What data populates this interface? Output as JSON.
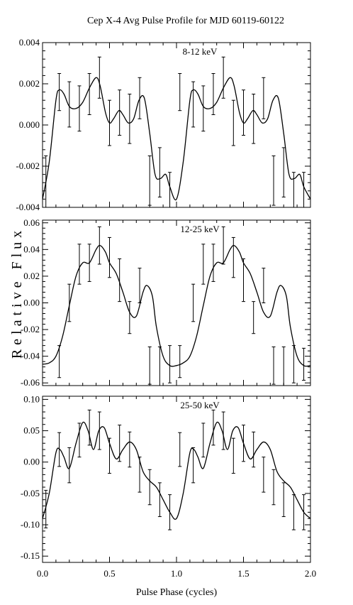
{
  "title": "Cep X-4    Avg Pulse Profile for MJD 60119-60122",
  "ylabel": "Relative Flux",
  "xlabel": "Pulse Phase (cycles)",
  "chart_data": [
    {
      "type": "line",
      "label": "8-12 keV",
      "xlim": [
        0.0,
        2.0
      ],
      "ylim": [
        -0.004,
        0.004
      ],
      "yticks": [
        -0.004,
        -0.002,
        0.0,
        0.002,
        0.004
      ],
      "ytick_labels": [
        "-0.004",
        "-0.002",
        "0.000",
        "0.002",
        "0.004"
      ],
      "error_bar_x": [
        0.025,
        0.125,
        0.2,
        0.275,
        0.35,
        0.425,
        0.5,
        0.575,
        0.65,
        0.725,
        0.8,
        0.875,
        0.95,
        1.025,
        1.125,
        1.2,
        1.275,
        1.35,
        1.425,
        1.5,
        1.575,
        1.65,
        1.725,
        1.8,
        1.875,
        1.95
      ],
      "error_bar_y": [
        -0.0033,
        0.0016,
        0.001,
        0.0008,
        0.0015,
        0.0023,
        0.0001,
        0.0006,
        0.0003,
        0.0013,
        -0.0027,
        -0.0023,
        -0.0034,
        0.0016,
        0.001,
        0.0008,
        0.0015,
        0.0023,
        0.0001,
        0.0006,
        0.0003,
        0.0013,
        -0.0027,
        -0.0023,
        -0.0034,
        -0.0034
      ],
      "error_bar_err": [
        0.0018,
        0.0009,
        0.0011,
        0.0011,
        0.001,
        0.001,
        0.0011,
        0.0011,
        0.0012,
        0.001,
        0.0012,
        0.0012,
        0.0011,
        0.0009,
        0.0011,
        0.0011,
        0.001,
        0.001,
        0.0011,
        0.0011,
        0.0012,
        0.001,
        0.0012,
        0.0012,
        0.0011,
        0.0011
      ],
      "curve_x": [
        0.0,
        0.05,
        0.1,
        0.125,
        0.16,
        0.2,
        0.25,
        0.3,
        0.35,
        0.4,
        0.43,
        0.47,
        0.5,
        0.53,
        0.57,
        0.6,
        0.64,
        0.68,
        0.72,
        0.76,
        0.8,
        0.84,
        0.88,
        0.92,
        0.95,
        1.0,
        1.05,
        1.1,
        1.125,
        1.16,
        1.2,
        1.25,
        1.3,
        1.35,
        1.4,
        1.43,
        1.47,
        1.5,
        1.53,
        1.57,
        1.6,
        1.64,
        1.68,
        1.72,
        1.76,
        1.8,
        1.84,
        1.88,
        1.92,
        1.95,
        2.0
      ],
      "curve_y": [
        -0.0036,
        -0.0018,
        0.0012,
        0.0017,
        0.0015,
        0.0009,
        0.0008,
        0.0011,
        0.0018,
        0.0023,
        0.0019,
        0.0006,
        0.0001,
        0.0003,
        0.0007,
        0.0005,
        0.0001,
        0.0003,
        0.0012,
        0.0013,
        -0.0004,
        -0.0024,
        -0.0026,
        -0.0024,
        -0.003,
        -0.0036,
        -0.0018,
        0.0012,
        0.0017,
        0.0015,
        0.0009,
        0.0008,
        0.0011,
        0.0018,
        0.0023,
        0.0019,
        0.0006,
        0.0001,
        0.0003,
        0.0007,
        0.0005,
        0.0001,
        0.0003,
        0.0012,
        0.0013,
        -0.0004,
        -0.0024,
        -0.0026,
        -0.0024,
        -0.003,
        -0.0036
      ]
    },
    {
      "type": "line",
      "label": "12-25 keV",
      "xlim": [
        0.0,
        2.0
      ],
      "ylim": [
        -0.062,
        0.062
      ],
      "yticks": [
        -0.06,
        -0.04,
        -0.02,
        0.0,
        0.02,
        0.04,
        0.06
      ],
      "ytick_labels": [
        "-0.06",
        "-0.04",
        "-0.02",
        "0.00",
        "0.02",
        "0.04",
        "0.06"
      ],
      "error_bar_x": [
        0.125,
        0.2,
        0.275,
        0.35,
        0.425,
        0.5,
        0.575,
        0.65,
        0.725,
        0.8,
        0.875,
        0.95,
        1.025,
        1.125,
        1.2,
        1.275,
        1.35,
        1.425,
        1.5,
        1.575,
        1.65,
        1.725,
        1.8,
        1.875,
        1.95
      ],
      "error_bar_y": [
        -0.044,
        0.0,
        0.029,
        0.03,
        0.043,
        0.034,
        0.017,
        -0.011,
        0.013,
        -0.047,
        -0.048,
        -0.046,
        -0.044,
        0.0,
        0.029,
        0.03,
        0.043,
        0.034,
        0.017,
        -0.011,
        0.013,
        -0.047,
        -0.048,
        -0.046,
        -0.046
      ],
      "error_bar_err": [
        0.012,
        0.014,
        0.015,
        0.014,
        0.014,
        0.015,
        0.016,
        0.012,
        0.013,
        0.014,
        0.015,
        0.014,
        0.012,
        0.014,
        0.015,
        0.014,
        0.014,
        0.015,
        0.016,
        0.012,
        0.013,
        0.014,
        0.015,
        0.014,
        0.012
      ],
      "curve_x": [
        0.0,
        0.05,
        0.1,
        0.15,
        0.2,
        0.25,
        0.3,
        0.35,
        0.4,
        0.43,
        0.47,
        0.5,
        0.55,
        0.6,
        0.65,
        0.7,
        0.75,
        0.78,
        0.82,
        0.85,
        0.9,
        0.95,
        1.0,
        1.05,
        1.1,
        1.15,
        1.2,
        1.25,
        1.3,
        1.35,
        1.4,
        1.43,
        1.47,
        1.5,
        1.55,
        1.6,
        1.65,
        1.7,
        1.75,
        1.78,
        1.82,
        1.85,
        1.9,
        1.95,
        2.0
      ],
      "curve_y": [
        -0.046,
        -0.045,
        -0.04,
        -0.025,
        -0.002,
        0.02,
        0.03,
        0.03,
        0.04,
        0.043,
        0.038,
        0.03,
        0.022,
        0.008,
        -0.007,
        -0.01,
        0.008,
        0.013,
        0.005,
        -0.018,
        -0.04,
        -0.047,
        -0.047,
        -0.045,
        -0.04,
        -0.025,
        -0.002,
        0.02,
        0.03,
        0.03,
        0.04,
        0.043,
        0.038,
        0.03,
        0.022,
        0.008,
        -0.007,
        -0.01,
        0.008,
        0.013,
        0.005,
        -0.018,
        -0.04,
        -0.047,
        -0.047
      ]
    },
    {
      "type": "line",
      "label": "25-50 keV",
      "xlim": [
        0.0,
        2.0
      ],
      "ylim": [
        -0.16,
        0.105
      ],
      "yticks": [
        -0.15,
        -0.1,
        -0.05,
        0.0,
        0.05,
        0.1
      ],
      "ytick_labels": [
        "-0.15",
        "-0.10",
        "-0.05",
        "0.00",
        "0.05",
        "0.10"
      ],
      "error_bar_x": [
        0.025,
        0.125,
        0.2,
        0.275,
        0.35,
        0.425,
        0.5,
        0.575,
        0.65,
        0.725,
        0.8,
        0.875,
        0.95,
        1.025,
        1.125,
        1.2,
        1.275,
        1.35,
        1.425,
        1.5,
        1.575,
        1.65,
        1.725,
        1.8,
        1.875,
        1.95
      ],
      "error_bar_y": [
        -0.075,
        0.02,
        -0.005,
        0.035,
        0.055,
        0.05,
        0.01,
        0.03,
        0.02,
        -0.02,
        -0.04,
        -0.06,
        -0.08,
        0.02,
        -0.005,
        0.035,
        0.055,
        0.05,
        0.01,
        0.03,
        0.02,
        -0.02,
        -0.04,
        -0.06,
        -0.08,
        -0.08
      ],
      "error_bar_err": [
        0.03,
        0.027,
        0.028,
        0.027,
        0.028,
        0.03,
        0.028,
        0.029,
        0.028,
        0.028,
        0.028,
        0.027,
        0.028,
        0.027,
        0.028,
        0.027,
        0.028,
        0.03,
        0.028,
        0.029,
        0.028,
        0.028,
        0.028,
        0.027,
        0.028,
        0.028
      ],
      "curve_x": [
        0.0,
        0.05,
        0.1,
        0.13,
        0.16,
        0.2,
        0.25,
        0.3,
        0.34,
        0.38,
        0.42,
        0.46,
        0.5,
        0.55,
        0.6,
        0.65,
        0.7,
        0.75,
        0.8,
        0.85,
        0.9,
        0.95,
        1.0,
        1.05,
        1.1,
        1.13,
        1.16,
        1.2,
        1.25,
        1.3,
        1.34,
        1.38,
        1.42,
        1.46,
        1.5,
        1.55,
        1.6,
        1.65,
        1.7,
        1.75,
        1.8,
        1.85,
        1.9,
        1.95,
        2.0
      ],
      "curve_y": [
        -0.09,
        -0.05,
        0.015,
        0.02,
        0.008,
        -0.01,
        0.03,
        0.063,
        0.05,
        0.02,
        0.05,
        0.055,
        0.03,
        0.005,
        0.02,
        0.032,
        0.02,
        -0.015,
        -0.03,
        -0.04,
        -0.06,
        -0.08,
        -0.09,
        -0.05,
        0.015,
        0.02,
        0.008,
        -0.01,
        0.03,
        0.063,
        0.05,
        0.02,
        0.05,
        0.055,
        0.03,
        0.005,
        0.02,
        0.032,
        0.02,
        -0.015,
        -0.03,
        -0.04,
        -0.06,
        -0.08,
        -0.09
      ]
    }
  ],
  "xticks": [
    0.0,
    0.5,
    1.0,
    1.5,
    2.0
  ],
  "xtick_labels": [
    "0.0",
    "0.5",
    "1.0",
    "1.5",
    "2.0"
  ]
}
